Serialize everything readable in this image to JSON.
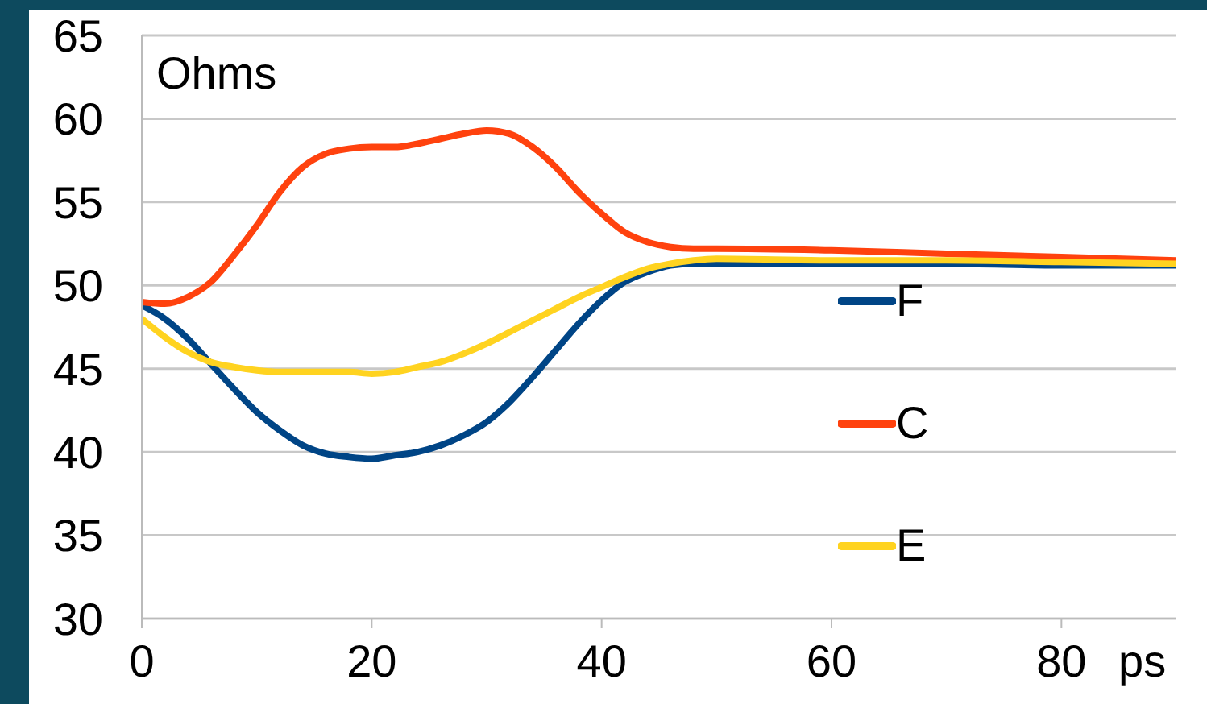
{
  "chart_data": {
    "type": "line",
    "ylabel": "Ohms",
    "xlabel": "ps",
    "x": [
      0,
      2,
      4,
      6,
      8,
      10,
      12,
      14,
      16,
      18,
      20,
      22,
      24,
      26,
      28,
      30,
      32,
      34,
      36,
      38,
      40,
      42,
      44,
      46,
      48,
      50,
      60,
      70,
      80,
      90
    ],
    "series": [
      {
        "name": "F",
        "color": "#004586",
        "values": [
          48.8,
          48,
          46.8,
          45.3,
          43.8,
          42.4,
          41.3,
          40.4,
          39.9,
          39.7,
          39.6,
          39.8,
          40,
          40.4,
          41,
          41.8,
          43,
          44.5,
          46.1,
          47.7,
          49.1,
          50.2,
          50.8,
          51.2,
          51.3,
          51.3,
          51.3,
          51.3,
          51.2,
          51.2
        ]
      },
      {
        "name": "C",
        "color": "#ff420e",
        "values": [
          49,
          48.9,
          49.3,
          50.2,
          51.8,
          53.6,
          55.6,
          57.1,
          57.9,
          58.2,
          58.3,
          58.3,
          58.5,
          58.8,
          59.1,
          59.3,
          59.1,
          58.3,
          57.1,
          55.6,
          54.3,
          53.2,
          52.6,
          52.3,
          52.2,
          52.2,
          52.1,
          51.9,
          51.7,
          51.5
        ]
      },
      {
        "name": "E",
        "color": "#ffd320",
        "values": [
          48,
          46.9,
          46,
          45.4,
          45.1,
          44.9,
          44.8,
          44.8,
          44.8,
          44.8,
          44.7,
          44.8,
          45.1,
          45.4,
          45.9,
          46.5,
          47.2,
          47.9,
          48.6,
          49.3,
          49.9,
          50.5,
          51,
          51.3,
          51.5,
          51.6,
          51.5,
          51.5,
          51.4,
          51.3
        ]
      }
    ],
    "xlim": [
      0,
      90
    ],
    "xticks": [
      0,
      20,
      40,
      60,
      80
    ],
    "ylim": [
      30,
      65
    ],
    "yticks": [
      30,
      35,
      40,
      45,
      50,
      55,
      60,
      65
    ],
    "grid": "y",
    "legend": "right"
  }
}
